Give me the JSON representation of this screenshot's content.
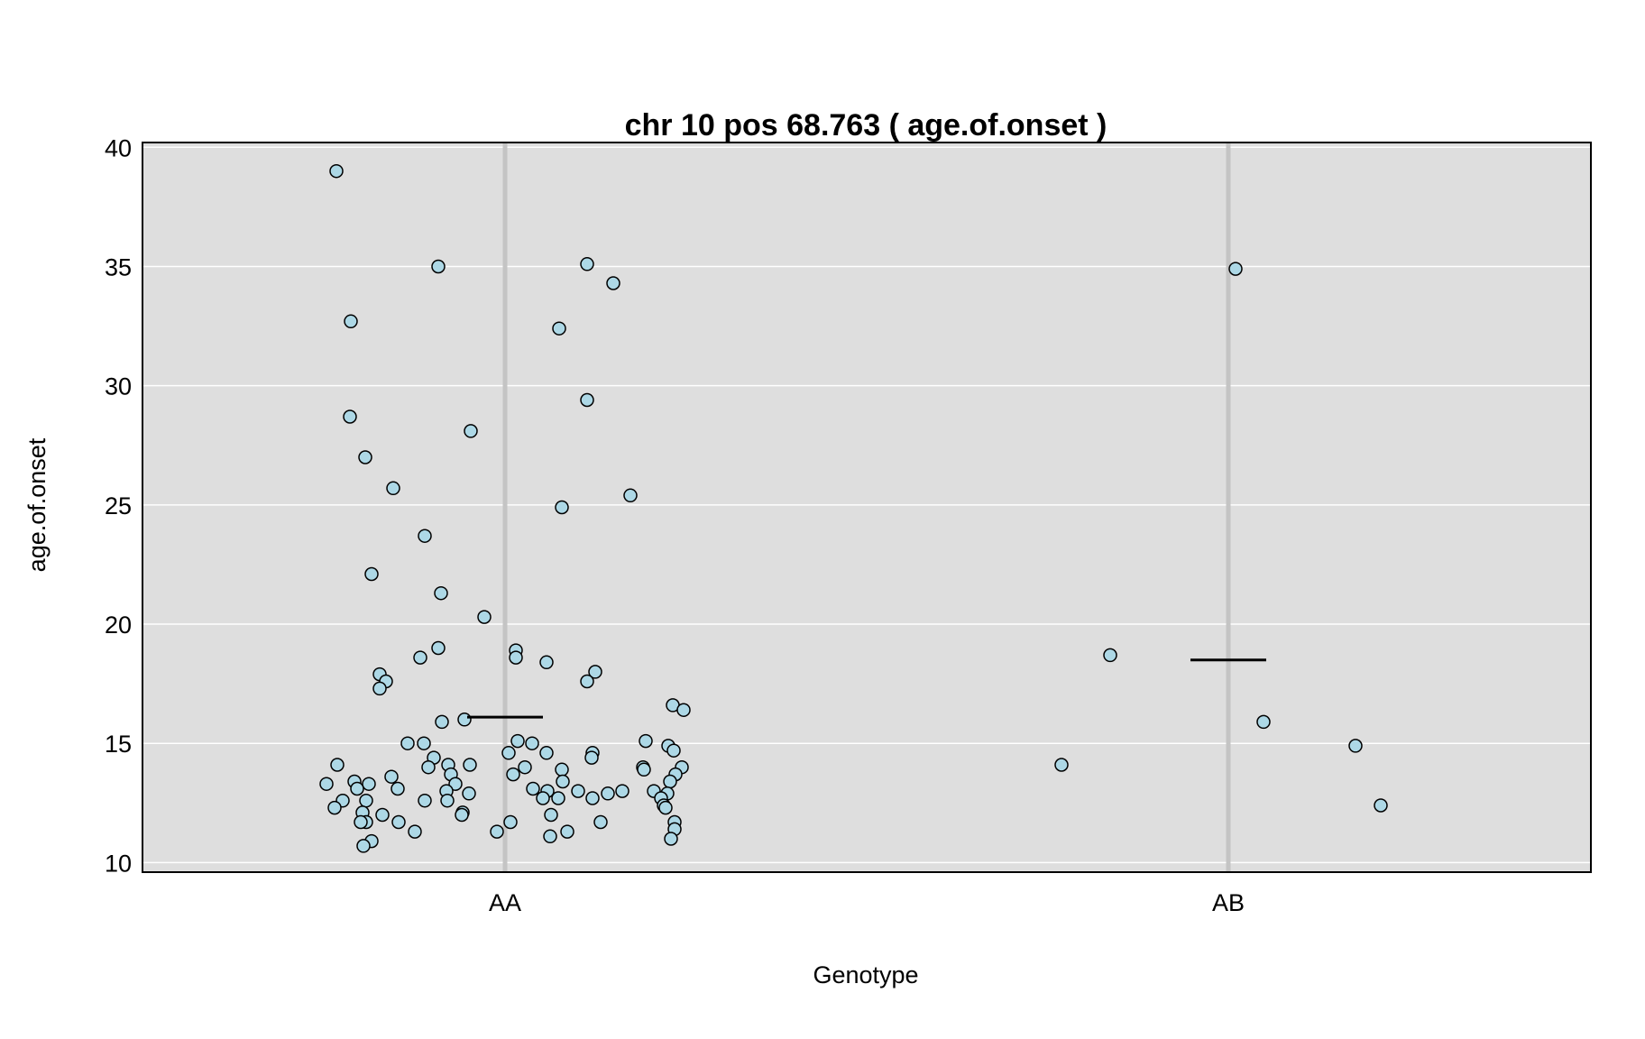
{
  "chart_data": {
    "type": "scatter",
    "title": "chr 10 pos 68.763 ( age.of.onset )",
    "xlabel": "Genotype",
    "ylabel": "age.of.onset",
    "categories": [
      "AA",
      "AB"
    ],
    "ylim": [
      9.6,
      40.2
    ],
    "yticks": [
      10,
      15,
      20,
      25,
      30,
      35,
      40
    ],
    "grid": true,
    "colors": {
      "panel": "#dedede",
      "gridline": "#ffffff",
      "category_line": "#c4c4c4",
      "point_fill": "#add8e6",
      "point_stroke": "#000000",
      "mean_line": "#000000"
    },
    "series": [
      {
        "category": "AA",
        "mean": 16.1,
        "points": [
          {
            "x": -0.187,
            "y": 39.0
          },
          {
            "x": -0.074,
            "y": 35.0
          },
          {
            "x": 0.091,
            "y": 35.1
          },
          {
            "x": 0.12,
            "y": 34.3
          },
          {
            "x": -0.171,
            "y": 32.7
          },
          {
            "x": 0.06,
            "y": 32.4
          },
          {
            "x": 0.091,
            "y": 29.4
          },
          {
            "x": -0.172,
            "y": 28.7
          },
          {
            "x": -0.038,
            "y": 28.1
          },
          {
            "x": -0.155,
            "y": 27.0
          },
          {
            "x": -0.124,
            "y": 25.7
          },
          {
            "x": 0.139,
            "y": 25.4
          },
          {
            "x": 0.063,
            "y": 24.9
          },
          {
            "x": -0.089,
            "y": 23.7
          },
          {
            "x": -0.148,
            "y": 22.1
          },
          {
            "x": -0.071,
            "y": 21.3
          },
          {
            "x": -0.023,
            "y": 20.3
          },
          {
            "x": -0.074,
            "y": 19.0
          },
          {
            "x": 0.012,
            "y": 18.9
          },
          {
            "x": -0.094,
            "y": 18.6
          },
          {
            "x": 0.012,
            "y": 18.6
          },
          {
            "x": 0.046,
            "y": 18.4
          },
          {
            "x": 0.1,
            "y": 18.0
          },
          {
            "x": -0.139,
            "y": 17.9
          },
          {
            "x": 0.091,
            "y": 17.6
          },
          {
            "x": -0.132,
            "y": 17.6
          },
          {
            "x": -0.139,
            "y": 17.3
          },
          {
            "x": 0.186,
            "y": 16.6
          },
          {
            "x": 0.198,
            "y": 16.4
          },
          {
            "x": -0.045,
            "y": 16.0
          },
          {
            "x": -0.07,
            "y": 15.9
          },
          {
            "x": 0.014,
            "y": 15.1
          },
          {
            "x": -0.108,
            "y": 15.0
          },
          {
            "x": -0.09,
            "y": 15.0
          },
          {
            "x": 0.03,
            "y": 15.0
          },
          {
            "x": 0.156,
            "y": 15.1
          },
          {
            "x": 0.181,
            "y": 14.9
          },
          {
            "x": 0.187,
            "y": 14.7
          },
          {
            "x": 0.004,
            "y": 14.6
          },
          {
            "x": 0.046,
            "y": 14.6
          },
          {
            "x": 0.097,
            "y": 14.6
          },
          {
            "x": 0.096,
            "y": 14.4
          },
          {
            "x": -0.079,
            "y": 14.4
          },
          {
            "x": -0.186,
            "y": 14.1
          },
          {
            "x": -0.085,
            "y": 14.0
          },
          {
            "x": -0.063,
            "y": 14.1
          },
          {
            "x": -0.039,
            "y": 14.1
          },
          {
            "x": 0.022,
            "y": 14.0
          },
          {
            "x": 0.153,
            "y": 14.0
          },
          {
            "x": 0.154,
            "y": 13.9
          },
          {
            "x": 0.196,
            "y": 14.0
          },
          {
            "x": 0.063,
            "y": 13.9
          },
          {
            "x": 0.009,
            "y": 13.7
          },
          {
            "x": -0.06,
            "y": 13.7
          },
          {
            "x": -0.126,
            "y": 13.6
          },
          {
            "x": 0.189,
            "y": 13.7
          },
          {
            "x": -0.167,
            "y": 13.4
          },
          {
            "x": 0.183,
            "y": 13.4
          },
          {
            "x": 0.064,
            "y": 13.4
          },
          {
            "x": -0.198,
            "y": 13.3
          },
          {
            "x": -0.151,
            "y": 13.3
          },
          {
            "x": -0.055,
            "y": 13.3
          },
          {
            "x": 0.031,
            "y": 13.1
          },
          {
            "x": -0.119,
            "y": 13.1
          },
          {
            "x": -0.164,
            "y": 13.1
          },
          {
            "x": -0.065,
            "y": 13.0
          },
          {
            "x": 0.047,
            "y": 13.0
          },
          {
            "x": 0.081,
            "y": 13.0
          },
          {
            "x": 0.13,
            "y": 13.0
          },
          {
            "x": 0.165,
            "y": 13.0
          },
          {
            "x": 0.18,
            "y": 12.9
          },
          {
            "x": 0.114,
            "y": 12.9
          },
          {
            "x": -0.04,
            "y": 12.9
          },
          {
            "x": 0.042,
            "y": 12.7
          },
          {
            "x": 0.059,
            "y": 12.7
          },
          {
            "x": 0.097,
            "y": 12.7
          },
          {
            "x": 0.173,
            "y": 12.7
          },
          {
            "x": -0.18,
            "y": 12.6
          },
          {
            "x": -0.154,
            "y": 12.6
          },
          {
            "x": -0.089,
            "y": 12.6
          },
          {
            "x": -0.064,
            "y": 12.6
          },
          {
            "x": 0.176,
            "y": 12.4
          },
          {
            "x": 0.178,
            "y": 12.3
          },
          {
            "x": -0.189,
            "y": 12.3
          },
          {
            "x": -0.158,
            "y": 12.1
          },
          {
            "x": -0.136,
            "y": 12.0
          },
          {
            "x": -0.047,
            "y": 12.1
          },
          {
            "x": -0.048,
            "y": 12.0
          },
          {
            "x": 0.051,
            "y": 12.0
          },
          {
            "x": -0.154,
            "y": 11.7
          },
          {
            "x": -0.16,
            "y": 11.7
          },
          {
            "x": -0.118,
            "y": 11.7
          },
          {
            "x": 0.006,
            "y": 11.7
          },
          {
            "x": 0.106,
            "y": 11.7
          },
          {
            "x": 0.188,
            "y": 11.7
          },
          {
            "x": 0.188,
            "y": 11.4
          },
          {
            "x": -0.009,
            "y": 11.3
          },
          {
            "x": -0.1,
            "y": 11.3
          },
          {
            "x": 0.069,
            "y": 11.3
          },
          {
            "x": 0.05,
            "y": 11.1
          },
          {
            "x": 0.184,
            "y": 11.0
          },
          {
            "x": -0.148,
            "y": 10.9
          },
          {
            "x": -0.157,
            "y": 10.7
          }
        ]
      },
      {
        "category": "AB",
        "mean": 18.5,
        "points": [
          {
            "x": 0.008,
            "y": 34.9
          },
          {
            "x": -0.131,
            "y": 18.7
          },
          {
            "x": 0.039,
            "y": 15.9
          },
          {
            "x": 0.141,
            "y": 14.9
          },
          {
            "x": -0.185,
            "y": 14.1
          },
          {
            "x": 0.169,
            "y": 12.4
          }
        ]
      }
    ]
  }
}
